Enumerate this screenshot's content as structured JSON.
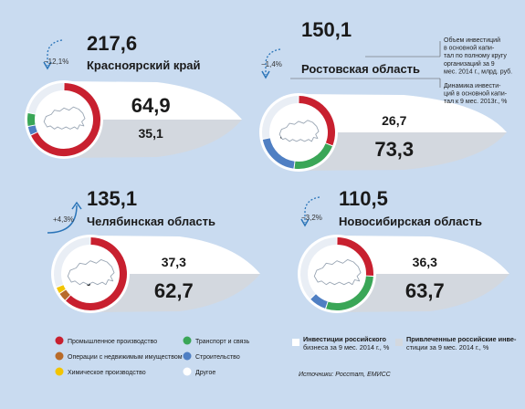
{
  "colors": {
    "background": "#c9dbf0",
    "industry": "#c8202f",
    "transport": "#3aa657",
    "realestate": "#b86b2a",
    "construction": "#4f7fc3",
    "chemical": "#f2c400",
    "other": "#e9eef5",
    "blue_share": "#dbe6f3",
    "grey_share": "#d3d8df",
    "arrow": "#2a74b8"
  },
  "chart_data": [
    {
      "type": "pie",
      "region": "Красноярский край",
      "total": "217,6",
      "dynamics": "−12,1%",
      "dynamics_dir": "down",
      "share_russian": "64,9",
      "share_attracted": "35,1",
      "values": [
        68,
        4,
        6,
        22
      ],
      "categories": [
        "Промышленное производство",
        "Строительство",
        "Транспорт и связь",
        "Другое"
      ]
    },
    {
      "type": "pie",
      "region": "Ростовская область",
      "total": "150,1",
      "dynamics": "−1,4%",
      "dynamics_dir": "down",
      "share_russian": "26,7",
      "share_attracted": "73,3",
      "values": [
        31,
        21,
        20,
        28
      ],
      "categories": [
        "Промышленное производство",
        "Транспорт и связь",
        "Строительство",
        "Другое"
      ]
    },
    {
      "type": "pie",
      "region": "Челябинская область",
      "total": "135,1",
      "dynamics": "+4,3%",
      "dynamics_dir": "up",
      "share_russian": "37,3",
      "share_attracted": "62,7",
      "values": [
        62,
        4,
        3,
        31
      ],
      "categories": [
        "Промышленное производство",
        "Операции с недвижимым имуществом",
        "Химическое производство",
        "Другое"
      ]
    },
    {
      "type": "pie",
      "region": "Новосибирская область",
      "total": "110,5",
      "dynamics": "−3,2%",
      "dynamics_dir": "down",
      "share_russian": "36,3",
      "share_attracted": "63,7",
      "values": [
        26,
        29,
        8,
        37
      ],
      "categories": [
        "Промышленное производство",
        "Транспорт и связь",
        "Строительство",
        "Другое"
      ]
    }
  ],
  "notes": {
    "note1": [
      "Объем инвестиций",
      "в основной капи-",
      "тал по полному кругу",
      "организаций за 9",
      "мес. 2014 г., млрд. руб."
    ],
    "note2": [
      "Динамика инвести-",
      "ций в основной капи-",
      "тал к 9 мес. 2013г., %"
    ]
  },
  "legend": {
    "industry": "Промышленное производство",
    "realestate": "Операции с недвижимым имуществом",
    "chemical": "Химическое производство",
    "transport": "Транспорт и связь",
    "construction": "Строительство",
    "other": "Другое",
    "share_russian_l1": "Инвестиции российского",
    "share_russian_l2": "бизнеса за 9 мес. 2014 г., %",
    "share_attracted_l1": "Привлеченные российские инве-",
    "share_attracted_l2": "стиции за 9 мес. 2014 г., %"
  },
  "source": "Источники: Росстат, ЕМИСС"
}
